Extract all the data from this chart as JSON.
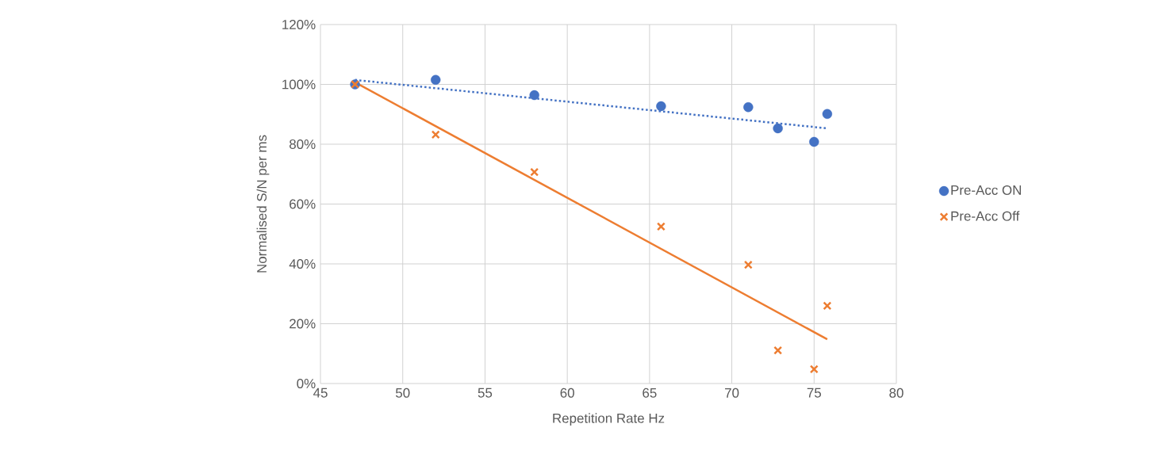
{
  "chart_data": {
    "type": "scatter",
    "xlabel": "Repetition Rate Hz",
    "ylabel": "Normalised S/N per ms",
    "xlim": [
      45,
      80
    ],
    "xticks": [
      45,
      50,
      55,
      60,
      65,
      70,
      75,
      80
    ],
    "ylim": [
      0,
      120
    ],
    "yticks": [
      {
        "value": 0,
        "label": "0%"
      },
      {
        "value": 20,
        "label": "20%"
      },
      {
        "value": 40,
        "label": "40%"
      },
      {
        "value": 60,
        "label": "60%"
      },
      {
        "value": 80,
        "label": "80%"
      },
      {
        "value": 100,
        "label": "100%"
      },
      {
        "value": 120,
        "label": "120%"
      }
    ],
    "grid": true,
    "legend": "right",
    "series": [
      {
        "name": "Pre-Acc ON",
        "color": "#4472c4",
        "marker": "circle",
        "x": [
          47.1,
          52,
          58,
          65.7,
          71,
          72.8,
          75,
          75.8
        ],
        "values": [
          100,
          101.5,
          96.4,
          92.7,
          92.4,
          85.3,
          80.8,
          90.1
        ]
      },
      {
        "name": "Pre-Acc Off",
        "color": "#ed7d31",
        "marker": "cross",
        "x": [
          47.1,
          52,
          58,
          65.7,
          71,
          72.8,
          75,
          75.8
        ],
        "values": [
          100,
          83.2,
          70.7,
          52.5,
          39.7,
          11.1,
          4.8,
          26
        ]
      },
      {
        "type": "line",
        "color": "#4472c4",
        "line_style": "dotted",
        "marker": "none",
        "x": [
          47.1,
          75.8
        ],
        "values": [
          101.5,
          85.3
        ]
      },
      {
        "type": "line",
        "color": "#ed7d31",
        "line_style": "solid",
        "marker": "none",
        "x": [
          47.1,
          75.8
        ],
        "values": [
          100.7,
          14.8
        ]
      }
    ]
  }
}
